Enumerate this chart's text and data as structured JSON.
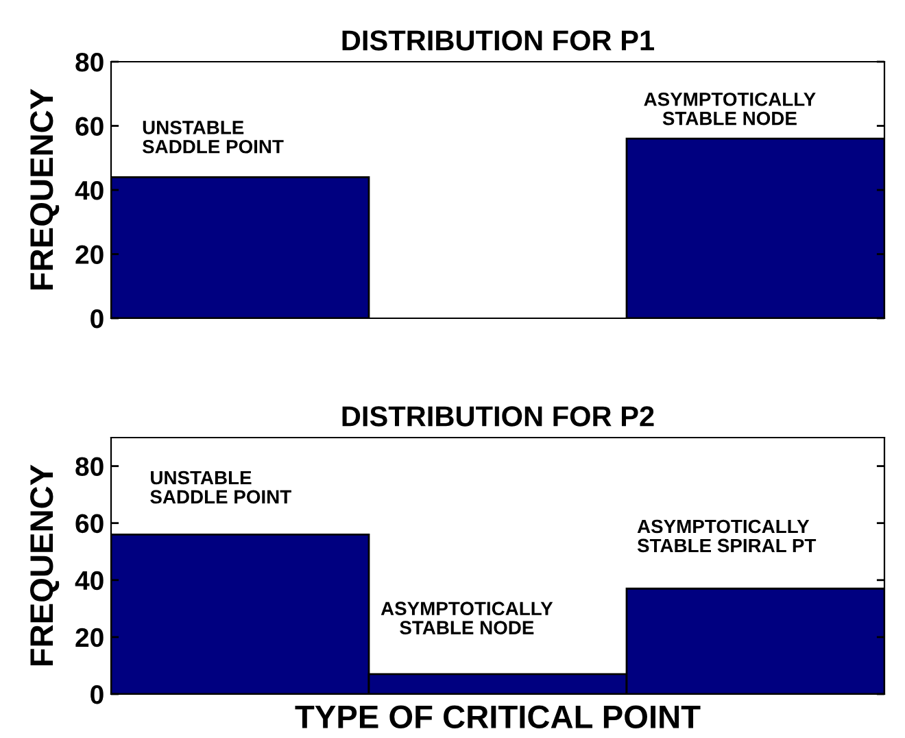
{
  "chart_data": [
    {
      "type": "bar",
      "title": "DISTRIBUTION FOR P1",
      "ylabel": "FREQUENCY",
      "categories": [
        null,
        null,
        null
      ],
      "values": [
        44,
        0,
        56
      ],
      "color": "#000080",
      "ylim": [
        0,
        80
      ],
      "yticks": [
        0,
        20,
        40,
        60,
        80
      ],
      "annotations": [
        "UNSTABLE\nSADDLE POINT",
        "ASYMPTOTICALLY\nSTABLE NODE"
      ],
      "grid": false,
      "legend": false
    },
    {
      "type": "bar",
      "title": "DISTRIBUTION FOR P2",
      "ylabel": "FREQUENCY",
      "xlabel": "TYPE OF CRITICAL POINT",
      "categories": [
        null,
        null,
        null
      ],
      "values": [
        56,
        7,
        37
      ],
      "color": "#000080",
      "ylim": [
        0,
        90
      ],
      "yticks": [
        0,
        20,
        40,
        60,
        80
      ],
      "annotations": [
        "UNSTABLE\nSADDLE POINT",
        "ASYMPTOTICALLY\nSTABLE NODE",
        "ASYMPTOTICALLY\nSTABLE SPIRAL PT"
      ],
      "grid": false,
      "legend": false
    }
  ]
}
